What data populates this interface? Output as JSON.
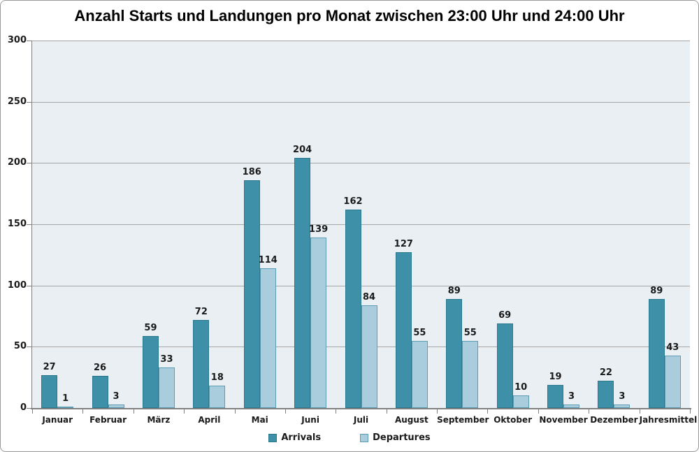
{
  "chart_data": {
    "type": "bar",
    "title": "Anzahl Starts und Landungen pro Monat zwischen 23:00 Uhr und 24:00 Uhr",
    "categories": [
      "Januar",
      "Februar",
      "März",
      "April",
      "Mai",
      "Juni",
      "Juli",
      "August",
      "September",
      "Oktober",
      "November",
      "Dezember",
      "Jahresmittel"
    ],
    "series": [
      {
        "name": "Arrivals",
        "color": "#3E8FA8",
        "border_color": "#2A7890",
        "values": [
          27,
          26,
          59,
          72,
          186,
          204,
          162,
          127,
          89,
          69,
          19,
          22,
          89
        ]
      },
      {
        "name": "Departures",
        "color": "#A9CDDC",
        "border_color": "#5C9DB3",
        "values": [
          1,
          3,
          33,
          18,
          114,
          139,
          84,
          55,
          55,
          10,
          3,
          3,
          43
        ]
      }
    ],
    "ylim": [
      0,
      300
    ],
    "ytick_step": 50,
    "yticks": [
      0,
      50,
      100,
      150,
      200,
      250,
      300
    ],
    "grid": true,
    "data_labels": true,
    "legend_position": "bottom"
  },
  "colors": {
    "plot_background": "#E9EFF3",
    "gridline": "#A6A6A6",
    "axis": "#808080",
    "text": "#1A1A1A",
    "chart_border": "#9A9A9A"
  }
}
